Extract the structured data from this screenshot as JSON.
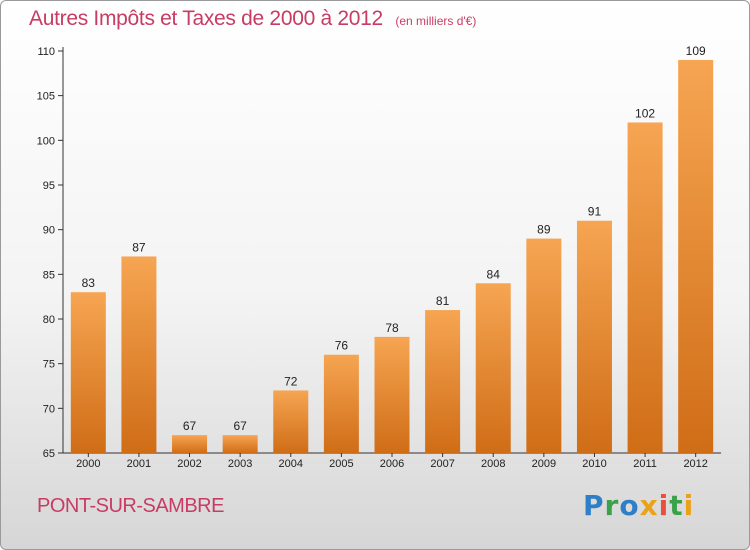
{
  "header": {
    "title": "Autres Impôts et Taxes de 2000 à 2012",
    "unit_note": "(en milliers d'€)"
  },
  "footer": {
    "town": "PONT-SUR-SAMBRE",
    "brand": "Proxiti"
  },
  "colors": {
    "title": "#c83c64",
    "bar_top": "#f6a552",
    "bar_bottom": "#d06d17",
    "axis": "#333333"
  },
  "chart_data": {
    "type": "bar",
    "title": "Autres Impôts et Taxes de 2000 à 2012",
    "subtitle": "(en milliers d'€)",
    "xlabel": "",
    "ylabel": "",
    "categories": [
      "2000",
      "2001",
      "2002",
      "2003",
      "2004",
      "2005",
      "2006",
      "2007",
      "2008",
      "2009",
      "2010",
      "2011",
      "2012"
    ],
    "values": [
      83,
      87,
      67,
      67,
      72,
      76,
      78,
      81,
      84,
      89,
      91,
      102,
      109
    ],
    "ylim": [
      65,
      110
    ],
    "yticks": [
      65,
      70,
      75,
      80,
      85,
      90,
      95,
      100,
      105,
      110
    ],
    "grid": false,
    "data_labels": true
  }
}
